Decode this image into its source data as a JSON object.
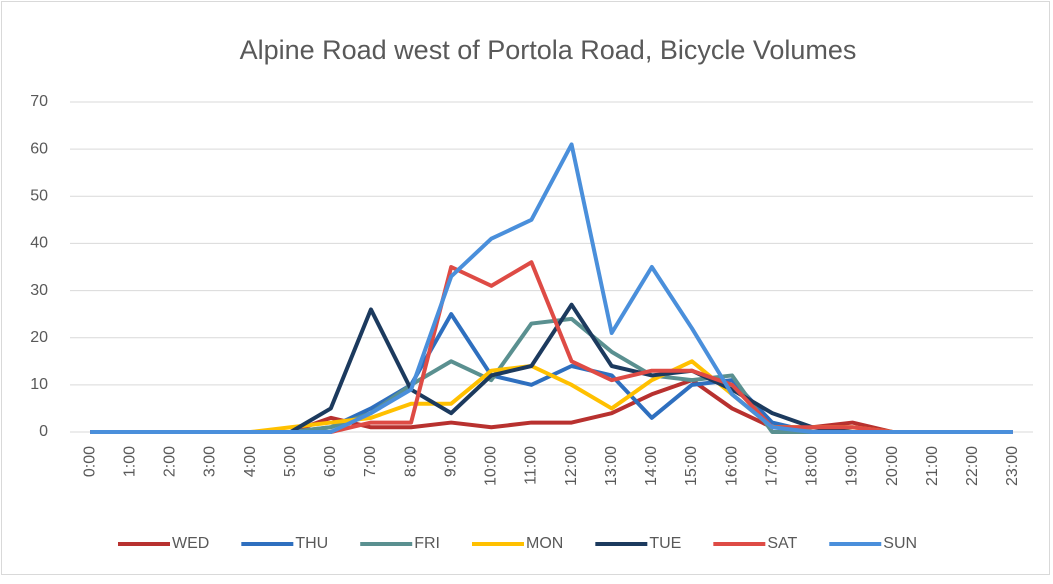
{
  "chart_data": {
    "type": "line",
    "title": "Alpine Road west of Portola Road, Bicycle Volumes",
    "categories": [
      "0:00",
      "1:00",
      "2:00",
      "3:00",
      "4:00",
      "5:00",
      "6:00",
      "7:00",
      "8:00",
      "9:00",
      "10:00",
      "11:00",
      "12:00",
      "13:00",
      "14:00",
      "15:00",
      "16:00",
      "17:00",
      "18:00",
      "19:00",
      "20:00",
      "21:00",
      "22:00",
      "23:00"
    ],
    "series": [
      {
        "name": "WED",
        "color": "#b8312f",
        "values": [
          0,
          0,
          0,
          0,
          0,
          0,
          3,
          1,
          1,
          2,
          1,
          2,
          2,
          4,
          8,
          11,
          5,
          1,
          1,
          2,
          0,
          0,
          0,
          0
        ]
      },
      {
        "name": "THU",
        "color": "#2e6fbf",
        "values": [
          0,
          0,
          0,
          0,
          0,
          0,
          1,
          5,
          10,
          25,
          12,
          10,
          14,
          12,
          3,
          10,
          11,
          2,
          0,
          0,
          0,
          0,
          0,
          0
        ]
      },
      {
        "name": "FRI",
        "color": "#5a9090",
        "values": [
          0,
          0,
          0,
          0,
          0,
          0,
          1,
          4,
          10,
          15,
          11,
          23,
          24,
          17,
          12,
          11,
          12,
          0,
          0,
          0,
          0,
          0,
          0,
          0
        ]
      },
      {
        "name": "MON",
        "color": "#ffc000",
        "values": [
          0,
          0,
          0,
          0,
          0,
          1,
          2,
          3,
          6,
          6,
          13,
          14,
          10,
          5,
          11,
          15,
          8,
          1,
          1,
          1,
          0,
          0,
          0,
          0
        ]
      },
      {
        "name": "TUE",
        "color": "#1c3a5e",
        "values": [
          0,
          0,
          0,
          0,
          0,
          0,
          5,
          26,
          9,
          4,
          12,
          14,
          27,
          14,
          12,
          13,
          9,
          4,
          1,
          0,
          0,
          0,
          0,
          0
        ]
      },
      {
        "name": "SAT",
        "color": "#de4b45",
        "values": [
          0,
          0,
          0,
          0,
          0,
          0,
          0,
          2,
          2,
          35,
          31,
          36,
          15,
          11,
          13,
          13,
          10,
          1,
          1,
          1,
          0,
          0,
          0,
          0
        ]
      },
      {
        "name": "SUN",
        "color": "#4a8fdb",
        "values": [
          0,
          0,
          0,
          0,
          0,
          0,
          0,
          4,
          9,
          33,
          41,
          45,
          61,
          21,
          35,
          22,
          8,
          1,
          0,
          0,
          0,
          0,
          0,
          0
        ]
      }
    ],
    "ylim": [
      0,
      70
    ],
    "yticks": [
      0,
      10,
      20,
      30,
      40,
      50,
      60,
      70
    ],
    "grid": true
  }
}
